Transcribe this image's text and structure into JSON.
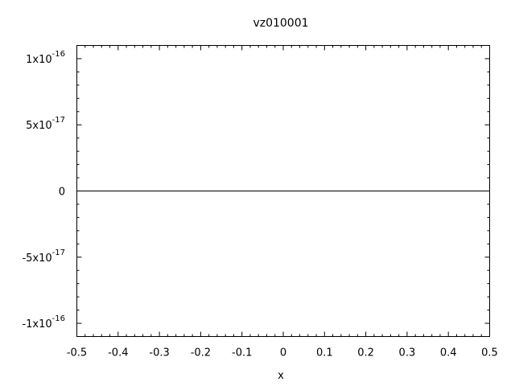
{
  "chart_data": {
    "type": "line",
    "title": "vz010001",
    "xlabel": "x",
    "ylabel": "",
    "xlim": [
      -0.5,
      0.5
    ],
    "ylim": [
      -1.1e-16,
      1.1e-16
    ],
    "x_ticks": [
      {
        "value": -0.5,
        "label": "-0.5"
      },
      {
        "value": -0.4,
        "label": "-0.4"
      },
      {
        "value": -0.3,
        "label": "-0.3"
      },
      {
        "value": -0.2,
        "label": "-0.2"
      },
      {
        "value": -0.1,
        "label": "-0.1"
      },
      {
        "value": 0,
        "label": "0"
      },
      {
        "value": 0.1,
        "label": "0.1"
      },
      {
        "value": 0.2,
        "label": "0.2"
      },
      {
        "value": 0.3,
        "label": "0.3"
      },
      {
        "value": 0.4,
        "label": "0.4"
      },
      {
        "value": 0.5,
        "label": "0.5"
      }
    ],
    "y_ticks": [
      {
        "value": 1e-16,
        "mantissa": "1x10",
        "exponent": "-16"
      },
      {
        "value": 5e-17,
        "mantissa": "5x10",
        "exponent": "-17"
      },
      {
        "value": 0,
        "mantissa": "0",
        "exponent": ""
      },
      {
        "value": -5e-17,
        "mantissa": "-5x10",
        "exponent": "-17"
      },
      {
        "value": -1e-16,
        "mantissa": "-1x10",
        "exponent": "-16"
      }
    ],
    "grid": false,
    "series": [
      {
        "x": [
          -0.5,
          0.5
        ],
        "y": [
          0,
          0
        ]
      }
    ]
  }
}
